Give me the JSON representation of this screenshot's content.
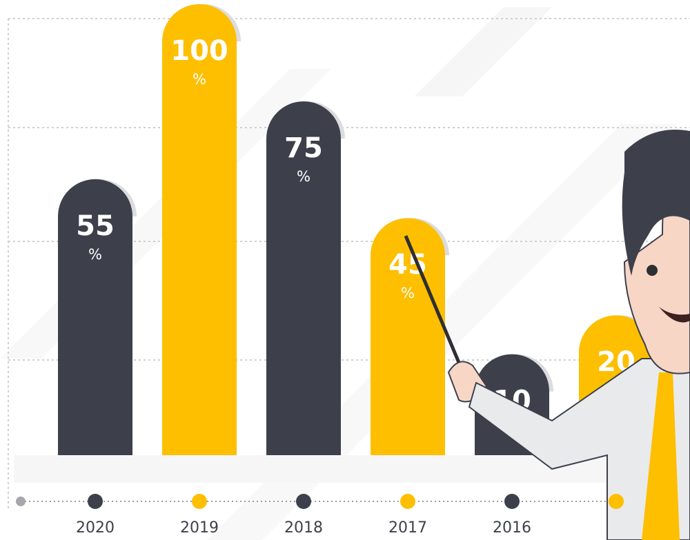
{
  "chart_data": {
    "type": "bar",
    "categories": [
      "2020",
      "2019",
      "2018",
      "2017",
      "2016",
      null
    ],
    "values": [
      55,
      100,
      75,
      45,
      10,
      20
    ],
    "unit": "%",
    "colors": [
      "#3d404b",
      "#fdbf00",
      "#3d404b",
      "#fdbf00",
      "#3d404b",
      "#fdbf00"
    ],
    "ylim": [
      0,
      100
    ]
  }
}
